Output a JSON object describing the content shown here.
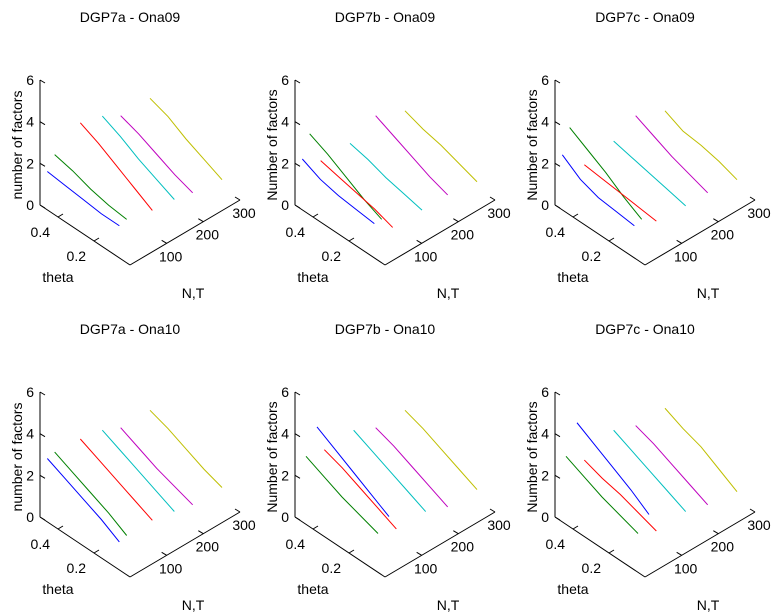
{
  "chart_data": [
    {
      "type": "line3d",
      "title": "DGP7a - Ona09",
      "xlabel": "theta",
      "ylabel": "N,T",
      "zlabel": "number of factors",
      "x": [
        0.1,
        0.2,
        0.3,
        0.4,
        0.5
      ],
      "xlim": [
        0,
        0.5
      ],
      "ylim": [
        0,
        300
      ],
      "zlim": [
        0,
        6
      ],
      "xticks": [
        0.2,
        0.4
      ],
      "yticks": [
        100,
        200,
        300
      ],
      "zticks": [
        0,
        2,
        4,
        6
      ],
      "series": [
        {
          "color": "#0000ff",
          "nt": 20,
          "values": [
            1.1,
            1.1,
            1.2,
            1.3,
            1.4
          ]
        },
        {
          "color": "#008000",
          "nt": 40,
          "values": [
            1.2,
            1.3,
            1.5,
            1.8,
            2.0
          ]
        },
        {
          "color": "#ff0000",
          "nt": 110,
          "values": [
            0.9,
            1.4,
            1.9,
            2.4,
            2.8
          ]
        },
        {
          "color": "#00bfbf",
          "nt": 170,
          "values": [
            0.8,
            1.2,
            1.6,
            2.1,
            2.5
          ]
        },
        {
          "color": "#bf00bf",
          "nt": 220,
          "values": [
            0.6,
            0.9,
            1.3,
            1.7,
            2.0
          ]
        },
        {
          "color": "#bfbf00",
          "nt": 300,
          "values": [
            0.4,
            0.8,
            1.2,
            1.7,
            2.0
          ]
        }
      ]
    },
    {
      "type": "line3d",
      "title": "DGP7b - Ona09",
      "xlabel": "theta",
      "ylabel": "N,T",
      "zlabel": "Number of factors",
      "x": [
        0.1,
        0.2,
        0.3,
        0.4,
        0.5
      ],
      "xlim": [
        0,
        0.5
      ],
      "ylim": [
        0,
        300
      ],
      "zlim": [
        0,
        6
      ],
      "xticks": [
        0.2,
        0.4
      ],
      "yticks": [
        100,
        200,
        300
      ],
      "zticks": [
        0,
        2,
        4,
        6
      ],
      "series": [
        {
          "color": "#0000ff",
          "nt": 20,
          "values": [
            1.2,
            1.3,
            1.4,
            1.6,
            2.0
          ]
        },
        {
          "color": "#008000",
          "nt": 40,
          "values": [
            1.2,
            1.6,
            2.1,
            2.6,
            3.0
          ]
        },
        {
          "color": "#ff0000",
          "nt": 70,
          "values": [
            0.5,
            0.8,
            1.0,
            1.2,
            1.4
          ]
        },
        {
          "color": "#00bfbf",
          "nt": 150,
          "values": [
            0.5,
            0.7,
            0.9,
            1.2,
            1.4
          ]
        },
        {
          "color": "#bf00bf",
          "nt": 220,
          "values": [
            0.5,
            0.8,
            1.2,
            1.6,
            2.0
          ]
        },
        {
          "color": "#bfbf00",
          "nt": 300,
          "values": [
            0.3,
            0.6,
            0.9,
            1.1,
            1.4
          ]
        }
      ]
    },
    {
      "type": "line3d",
      "title": "DGP7c - Ona09",
      "xlabel": "theta",
      "ylabel": "N,T",
      "zlabel": "Number of factors",
      "x": [
        0.1,
        0.2,
        0.3,
        0.4,
        0.5
      ],
      "xlim": [
        0,
        0.5
      ],
      "ylim": [
        0,
        300
      ],
      "zlim": [
        0,
        6
      ],
      "xticks": [
        0.2,
        0.4
      ],
      "yticks": [
        100,
        200,
        300
      ],
      "zticks": [
        0,
        2,
        4,
        6
      ],
      "series": [
        {
          "color": "#0000ff",
          "nt": 20,
          "values": [
            1.1,
            1.2,
            1.3,
            1.6,
            2.2
          ]
        },
        {
          "color": "#008000",
          "nt": 40,
          "values": [
            1.2,
            1.7,
            2.3,
            2.8,
            3.3
          ]
        },
        {
          "color": "#ff0000",
          "nt": 80,
          "values": [
            0.7,
            0.8,
            0.9,
            1.0,
            1.1
          ]
        },
        {
          "color": "#00bfbf",
          "nt": 160,
          "values": [
            0.6,
            0.8,
            1.0,
            1.2,
            1.4
          ]
        },
        {
          "color": "#bf00bf",
          "nt": 220,
          "values": [
            0.6,
            0.9,
            1.2,
            1.6,
            2.0
          ]
        },
        {
          "color": "#bfbf00",
          "nt": 300,
          "values": [
            0.4,
            0.7,
            0.9,
            1.0,
            1.4
          ]
        }
      ]
    },
    {
      "type": "line3d",
      "title": "DGP7a - Ona10",
      "xlabel": "theta",
      "ylabel": "N,T",
      "zlabel": "number of factors",
      "x": [
        0.1,
        0.2,
        0.3,
        0.4,
        0.5
      ],
      "xlim": [
        0,
        0.5
      ],
      "ylim": [
        0,
        300
      ],
      "zlim": [
        0,
        6
      ],
      "xticks": [
        0.2,
        0.4
      ],
      "yticks": [
        100,
        200,
        300
      ],
      "zticks": [
        0,
        2,
        4,
        6
      ],
      "series": [
        {
          "color": "#0000ff",
          "nt": 20,
          "values": [
            0.9,
            1.4,
            1.8,
            2.2,
            2.6
          ]
        },
        {
          "color": "#008000",
          "nt": 40,
          "values": [
            1.0,
            1.5,
            1.9,
            2.3,
            2.7
          ]
        },
        {
          "color": "#ff0000",
          "nt": 110,
          "values": [
            1.0,
            1.4,
            1.8,
            2.2,
            2.6
          ]
        },
        {
          "color": "#00bfbf",
          "nt": 170,
          "values": [
            0.8,
            1.2,
            1.6,
            2.0,
            2.4
          ]
        },
        {
          "color": "#bf00bf",
          "nt": 220,
          "values": [
            0.6,
            0.9,
            1.2,
            1.6,
            2.0
          ]
        },
        {
          "color": "#bfbf00",
          "nt": 300,
          "values": [
            0.6,
            0.9,
            1.3,
            1.7,
            2.0
          ]
        }
      ]
    },
    {
      "type": "line3d",
      "title": "DGP7b - Ona10",
      "xlabel": "theta",
      "ylabel": "N,T",
      "zlabel": "Number of factors",
      "x": [
        0.1,
        0.2,
        0.3,
        0.4,
        0.5
      ],
      "xlim": [
        0,
        0.5
      ],
      "ylim": [
        0,
        300
      ],
      "zlim": [
        0,
        6
      ],
      "xticks": [
        0.2,
        0.4
      ],
      "yticks": [
        100,
        200,
        300
      ],
      "zticks": [
        0,
        2,
        4,
        6
      ],
      "series": [
        {
          "color": "#0000ff",
          "nt": 60,
          "values": [
            1.7,
            2.2,
            2.7,
            3.2,
            3.7
          ]
        },
        {
          "color": "#008000",
          "nt": 30,
          "values": [
            1.2,
            1.5,
            1.8,
            2.2,
            2.6
          ]
        },
        {
          "color": "#ff0000",
          "nt": 80,
          "values": [
            0.9,
            1.3,
            1.7,
            2.1,
            2.4
          ]
        },
        {
          "color": "#00bfbf",
          "nt": 160,
          "values": [
            0.9,
            1.3,
            1.7,
            2.1,
            2.5
          ]
        },
        {
          "color": "#bf00bf",
          "nt": 220,
          "values": [
            0.5,
            0.9,
            1.3,
            1.7,
            2.0
          ]
        },
        {
          "color": "#bfbf00",
          "nt": 300,
          "values": [
            0.5,
            0.9,
            1.3,
            1.7,
            2.0
          ]
        }
      ]
    },
    {
      "type": "line3d",
      "title": "DGP7c - Ona10",
      "xlabel": "theta",
      "ylabel": "N,T",
      "zlabel": "Number of factors",
      "x": [
        0.1,
        0.2,
        0.3,
        0.4,
        0.5
      ],
      "xlim": [
        0,
        0.5
      ],
      "ylim": [
        0,
        300
      ],
      "zlim": [
        0,
        6
      ],
      "xticks": [
        0.2,
        0.4
      ],
      "yticks": [
        100,
        200,
        300
      ],
      "zticks": [
        0,
        2,
        4,
        6
      ],
      "series": [
        {
          "color": "#0000ff",
          "nt": 60,
          "values": [
            1.8,
            2.4,
            2.9,
            3.4,
            3.9
          ]
        },
        {
          "color": "#008000",
          "nt": 30,
          "values": [
            1.2,
            1.5,
            1.8,
            2.2,
            2.6
          ]
        },
        {
          "color": "#ff0000",
          "nt": 80,
          "values": [
            0.8,
            1.1,
            1.4,
            1.6,
            1.9
          ]
        },
        {
          "color": "#00bfbf",
          "nt": 160,
          "values": [
            0.9,
            1.3,
            1.7,
            2.1,
            2.5
          ]
        },
        {
          "color": "#bf00bf",
          "nt": 220,
          "values": [
            0.6,
            1.0,
            1.4,
            1.8,
            2.1
          ]
        },
        {
          "color": "#bfbf00",
          "nt": 300,
          "values": [
            0.4,
            0.9,
            1.4,
            1.7,
            2.1
          ]
        }
      ]
    }
  ]
}
